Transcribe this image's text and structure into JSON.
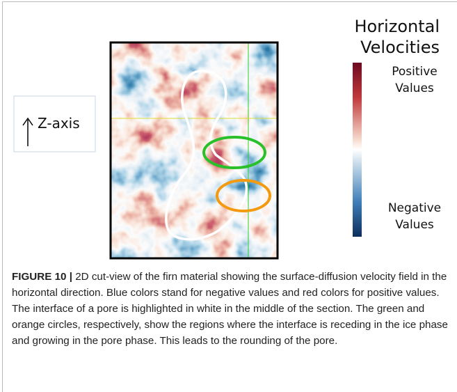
{
  "figure": {
    "axis_label": "Z-axis",
    "legend_title": [
      "Horizontal",
      "Velocities"
    ],
    "colorbar": {
      "positive": [
        "Positive",
        "Values"
      ],
      "negative": [
        "Negative",
        "Values"
      ]
    }
  },
  "caption": {
    "label": "FIGURE 10 |",
    "text": "2D cut-view of the firn material showing the surface-diffusion velocity field in the horizontal direction. Blue colors stand for negative values and red colors for positive values. The interface of a pore is highlighted in white in the middle of the section. The green and orange circles, respectively, show the regions where the interface is receding in the ice phase and growing in the pore phase. This leads to the rounding of the pore."
  }
}
